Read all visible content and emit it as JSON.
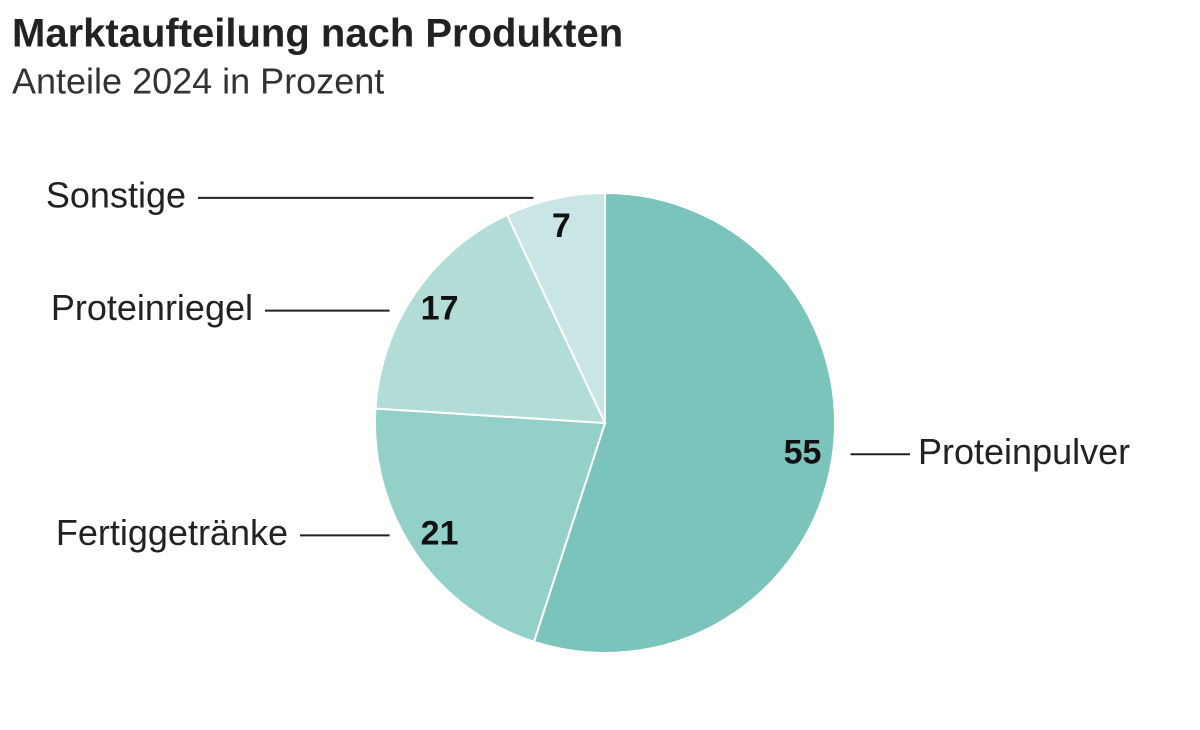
{
  "chart_data": {
    "type": "pie",
    "title": "Marktaufteilung nach Produkten",
    "subtitle": "Anteile 2024 in Prozent",
    "categories": [
      "Proteinpulver",
      "Fertiggetränke",
      "Proteinriegel",
      "Sonstige"
    ],
    "values": [
      55,
      21,
      17,
      7
    ],
    "colors": [
      "#7bc4bb",
      "#93d0c7",
      "#b2ddd7",
      "#cae6e4"
    ]
  }
}
